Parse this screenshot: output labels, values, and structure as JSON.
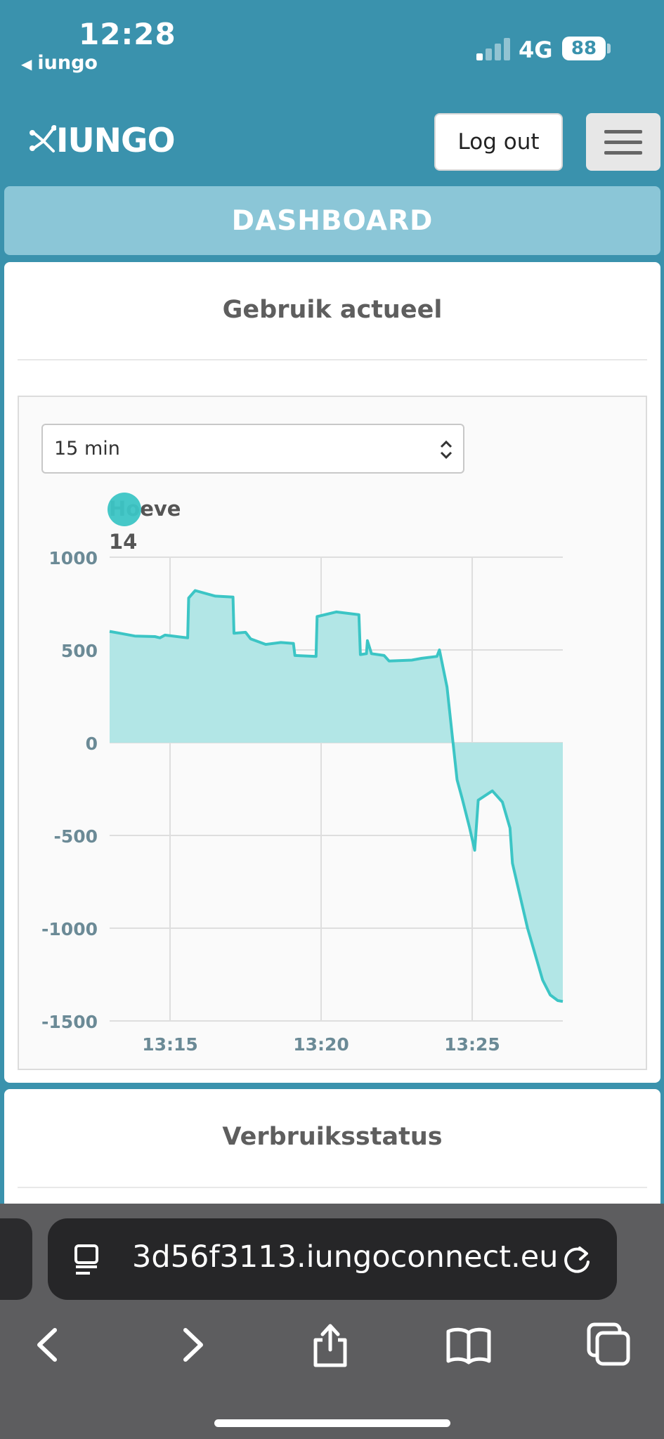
{
  "status_bar": {
    "time": "12:28",
    "back_app": "iungo",
    "network": "4G",
    "battery": "88"
  },
  "nav": {
    "logo_text": "IUNGO",
    "logout_label": "Log out"
  },
  "page_title": "DASHBOARD",
  "usage_card": {
    "title": "Gebruik actueel",
    "range_select": {
      "selected": "15 min"
    }
  },
  "status_card": {
    "title": "Verbruiksstatus"
  },
  "chart_data": {
    "type": "area",
    "legend": [
      {
        "name": "Hoeve",
        "value": "14",
        "color": "#3cc5c5"
      }
    ],
    "series": [
      {
        "name": "Hoeve",
        "color": "#3cc5c5",
        "fill": "#b2e6e6",
        "points": [
          [
            "13:13:00",
            600
          ],
          [
            "13:13:20",
            590
          ],
          [
            "13:13:50",
            575
          ],
          [
            "13:14:30",
            572
          ],
          [
            "13:14:40",
            565
          ],
          [
            "13:14:50",
            580
          ],
          [
            "13:15:35",
            565
          ],
          [
            "13:15:37",
            780
          ],
          [
            "13:15:50",
            820
          ],
          [
            "13:16:30",
            790
          ],
          [
            "13:17:05",
            785
          ],
          [
            "13:17:07",
            590
          ],
          [
            "13:17:30",
            595
          ],
          [
            "13:17:40",
            560
          ],
          [
            "13:18:10",
            530
          ],
          [
            "13:18:40",
            540
          ],
          [
            "13:19:05",
            535
          ],
          [
            "13:19:08",
            470
          ],
          [
            "13:19:50",
            465
          ],
          [
            "13:19:52",
            680
          ],
          [
            "13:20:30",
            705
          ],
          [
            "13:21:15",
            690
          ],
          [
            "13:21:18",
            475
          ],
          [
            "13:21:30",
            480
          ],
          [
            "13:21:32",
            550
          ],
          [
            "13:21:40",
            480
          ],
          [
            "13:22:05",
            470
          ],
          [
            "13:22:15",
            440
          ],
          [
            "13:23:00",
            445
          ],
          [
            "13:23:20",
            455
          ],
          [
            "13:23:50",
            465
          ],
          [
            "13:23:55",
            500
          ],
          [
            "13:24:10",
            300
          ],
          [
            "13:24:20",
            50
          ],
          [
            "13:24:30",
            -200
          ],
          [
            "13:24:40",
            -300
          ],
          [
            "13:24:55",
            -460
          ],
          [
            "13:25:05",
            -580
          ],
          [
            "13:25:12",
            -310
          ],
          [
            "13:25:40",
            -260
          ],
          [
            "13:26:00",
            -320
          ],
          [
            "13:26:15",
            -460
          ],
          [
            "13:26:20",
            -650
          ],
          [
            "13:26:50",
            -1000
          ],
          [
            "13:27:20",
            -1280
          ],
          [
            "13:27:35",
            -1360
          ],
          [
            "13:27:50",
            -1390
          ],
          [
            "13:28:00",
            -1395
          ]
        ]
      }
    ],
    "x_ticks": [
      "13:15",
      "13:20",
      "13:25"
    ],
    "x_range": [
      "13:13:00",
      "13:28:00"
    ],
    "y_ticks": [
      1000,
      500,
      0,
      -500,
      -1000,
      -1500
    ],
    "ylim": [
      -1500,
      1000
    ],
    "grid": true
  },
  "browser": {
    "url": "3d56f3113.iungoconnect.eu"
  }
}
